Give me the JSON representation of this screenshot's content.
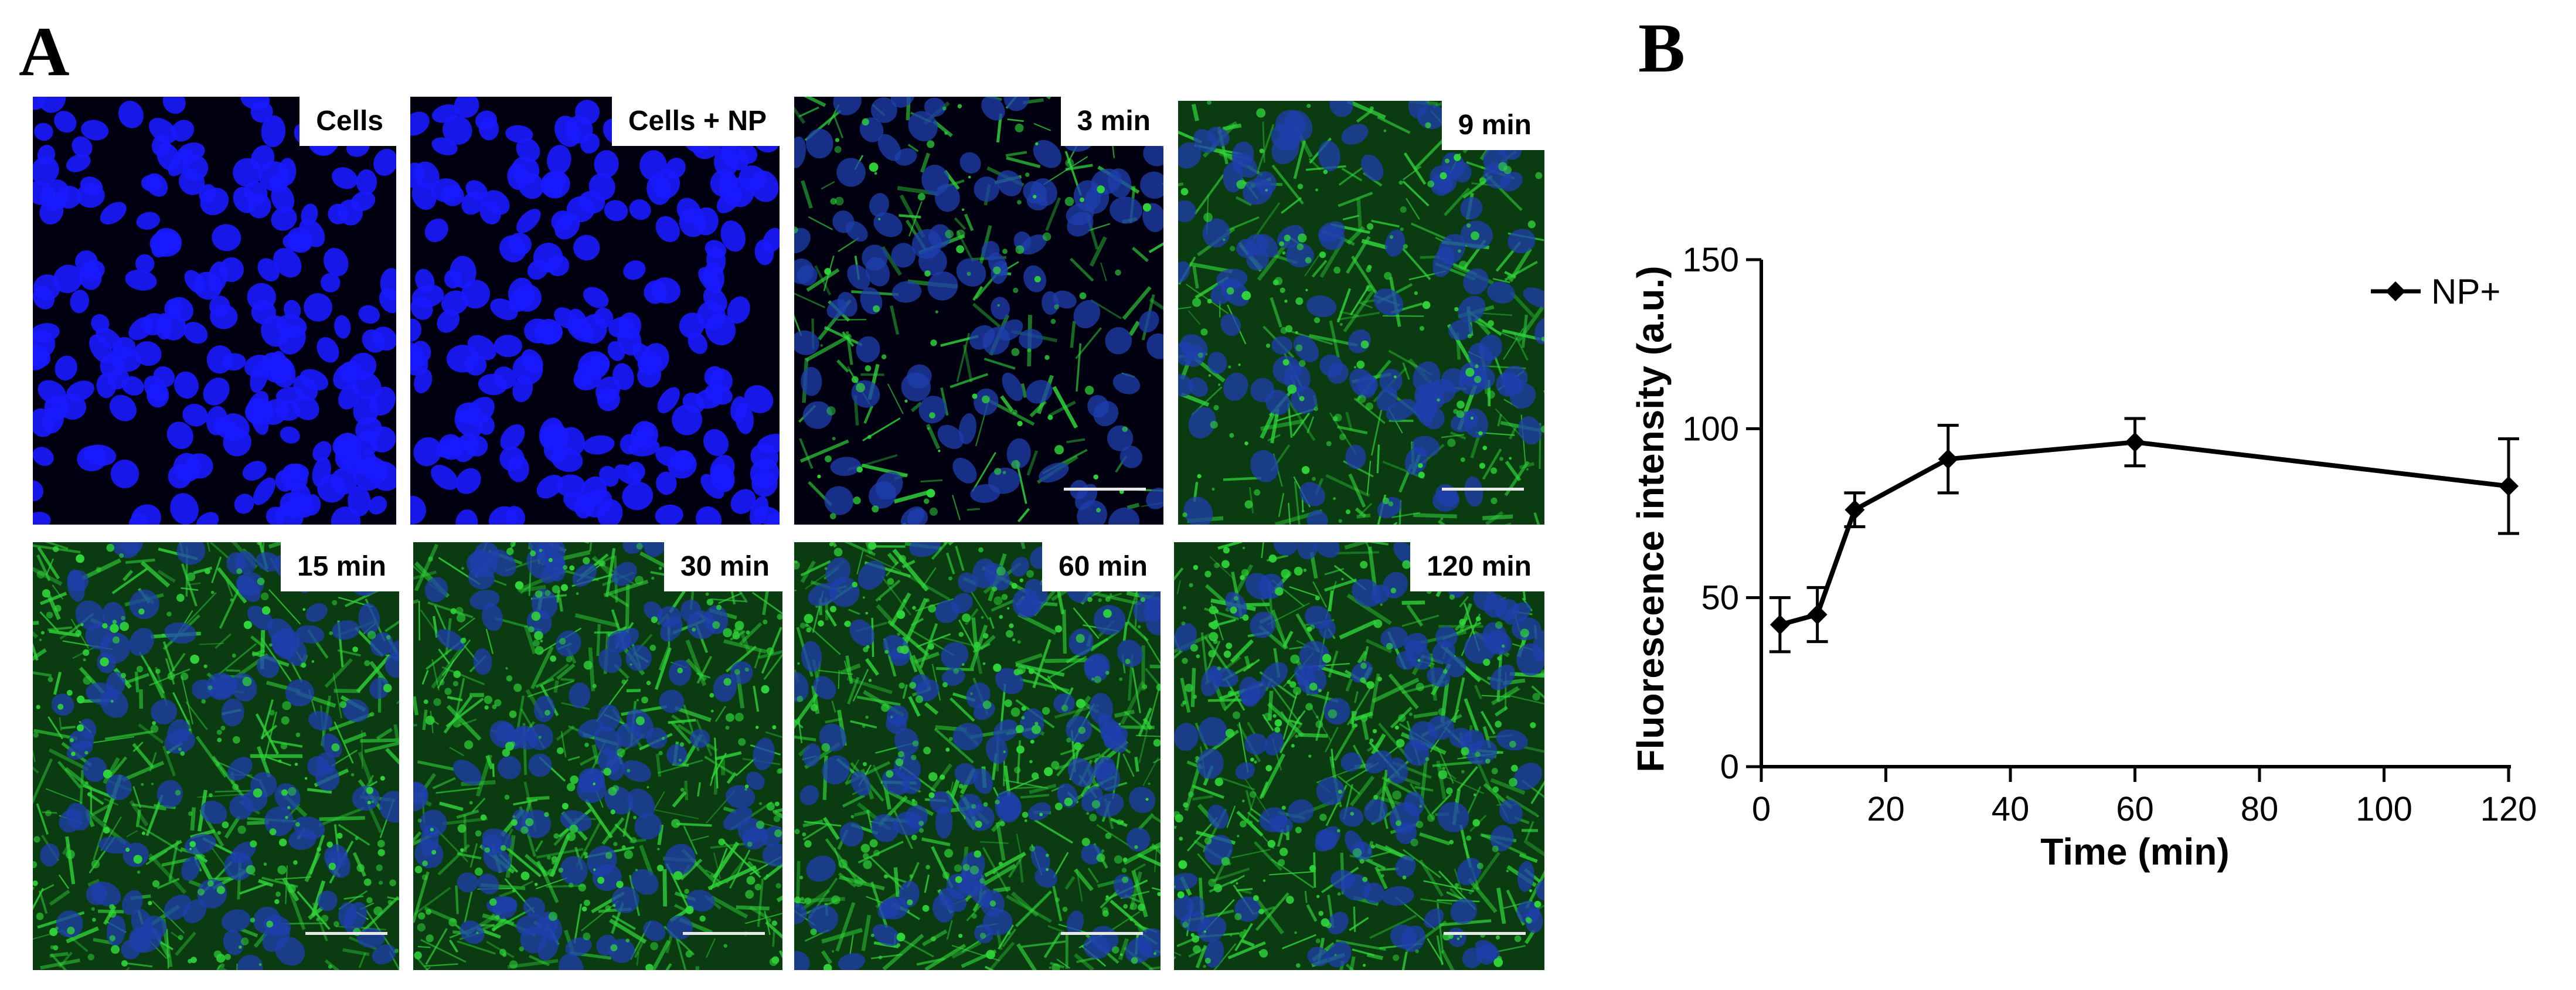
{
  "figure": {
    "panel_a_letter": "A",
    "panel_b_letter": "B"
  },
  "micrographs": [
    {
      "label": "Cells",
      "green": 0.0
    },
    {
      "label": "Cells + NP",
      "green": 0.0
    },
    {
      "label": "3 min",
      "green": 0.35
    },
    {
      "label": "9 min",
      "green": 0.55
    },
    {
      "label": "15 min",
      "green": 0.75
    },
    {
      "label": "30 min",
      "green": 0.85
    },
    {
      "label": "60 min",
      "green": 0.9
    },
    {
      "label": "120 min",
      "green": 0.85
    }
  ],
  "colors": {
    "nucleus": "#1a1aff",
    "nucleus_dim": "#1f3fae",
    "actin": "#2fd43a",
    "line": "#000000"
  },
  "chart_data": {
    "type": "line",
    "title": "",
    "xlabel": "Time (min)",
    "ylabel": "Fluorescence intensity (a.u.)",
    "xlim": [
      0,
      120
    ],
    "ylim": [
      0,
      150
    ],
    "xticks": [
      0,
      20,
      40,
      60,
      80,
      100,
      120
    ],
    "yticks": [
      0,
      50,
      100,
      150
    ],
    "grid": false,
    "legend_position": "top-right",
    "series": [
      {
        "name": "NP+",
        "marker": "diamond",
        "x": [
          3,
          9,
          15,
          30,
          60,
          120
        ],
        "y": [
          42,
          45,
          76,
          91,
          96,
          83
        ],
        "error": [
          8,
          8,
          5,
          10,
          7,
          14
        ]
      }
    ]
  }
}
